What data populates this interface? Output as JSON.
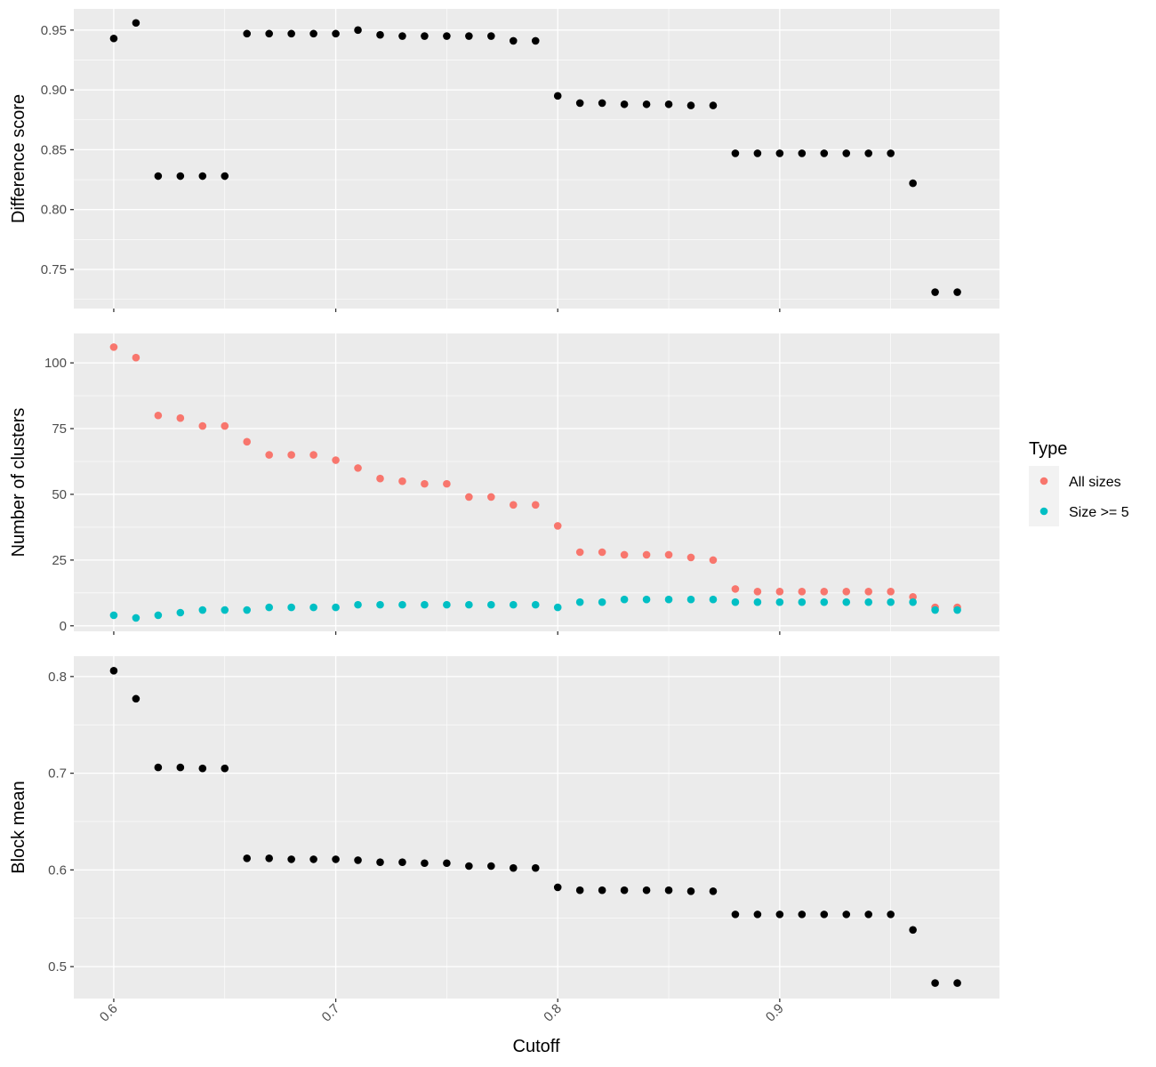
{
  "chart_data": {
    "type": "scatter",
    "xlabel": "Cutoff",
    "xlim": [
      0.582,
      0.999
    ],
    "xticks": [
      0.6,
      0.7,
      0.8,
      0.9
    ],
    "xtick_labels": [
      "0.6",
      "0.7",
      "0.8",
      "0.9"
    ],
    "x": [
      0.6,
      0.61,
      0.62,
      0.63,
      0.64,
      0.65,
      0.66,
      0.67,
      0.68,
      0.69,
      0.7,
      0.71,
      0.72,
      0.73,
      0.74,
      0.75,
      0.76,
      0.77,
      0.78,
      0.79,
      0.8,
      0.81,
      0.82,
      0.83,
      0.84,
      0.85,
      0.86,
      0.87,
      0.88,
      0.89,
      0.9,
      0.91,
      0.92,
      0.93,
      0.94,
      0.95,
      0.96,
      0.97,
      0.98
    ],
    "panels": [
      {
        "ylabel": "Difference score",
        "ylim": [
          0.7173,
          0.9677
        ],
        "yticks": [
          0.75,
          0.8,
          0.85,
          0.9,
          0.95
        ],
        "ytick_labels": [
          "0.75",
          "0.80",
          "0.85",
          "0.90",
          "0.95"
        ],
        "series": [
          {
            "color": "#000000",
            "values": [
              0.943,
              0.956,
              0.828,
              0.828,
              0.828,
              0.828,
              0.947,
              0.947,
              0.947,
              0.947,
              0.947,
              0.95,
              0.946,
              0.945,
              0.945,
              0.945,
              0.945,
              0.945,
              0.941,
              0.941,
              0.895,
              0.889,
              0.889,
              0.888,
              0.888,
              0.888,
              0.887,
              0.887,
              0.847,
              0.847,
              0.847,
              0.847,
              0.847,
              0.847,
              0.847,
              0.847,
              0.822,
              0.731,
              0.731
            ]
          }
        ]
      },
      {
        "ylabel": "Number of clusters",
        "ylim": [
          -2.1,
          111.2
        ],
        "yticks": [
          0,
          25,
          50,
          75,
          100
        ],
        "ytick_labels": [
          "0",
          "25",
          "50",
          "75",
          "100"
        ],
        "series": [
          {
            "name": "All sizes",
            "color": "#f8766d",
            "values": [
              106,
              102,
              80,
              79,
              76,
              76,
              70,
              65,
              65,
              65,
              63,
              60,
              56,
              55,
              54,
              54,
              49,
              49,
              46,
              46,
              38,
              28,
              28,
              27,
              27,
              27,
              26,
              25,
              14,
              13,
              13,
              13,
              13,
              13,
              13,
              13,
              11,
              7,
              7
            ]
          },
          {
            "name": "Size >= 5",
            "color": "#00bfc4",
            "values": [
              4,
              3,
              4,
              5,
              6,
              6,
              6,
              7,
              7,
              7,
              7,
              8,
              8,
              8,
              8,
              8,
              8,
              8,
              8,
              8,
              7,
              9,
              9,
              10,
              10,
              10,
              10,
              10,
              9,
              9,
              9,
              9,
              9,
              9,
              9,
              9,
              9,
              6,
              6
            ]
          }
        ]
      },
      {
        "ylabel": "Block mean",
        "ylim": [
          0.467,
          0.821
        ],
        "yticks": [
          0.5,
          0.6,
          0.7,
          0.8
        ],
        "ytick_labels": [
          "0.5",
          "0.6",
          "0.7",
          "0.8"
        ],
        "series": [
          {
            "color": "#000000",
            "values": [
              0.806,
              0.777,
              0.706,
              0.706,
              0.705,
              0.705,
              0.612,
              0.612,
              0.611,
              0.611,
              0.611,
              0.61,
              0.608,
              0.608,
              0.607,
              0.607,
              0.604,
              0.604,
              0.602,
              0.602,
              0.582,
              0.579,
              0.579,
              0.579,
              0.579,
              0.579,
              0.578,
              0.578,
              0.554,
              0.554,
              0.554,
              0.554,
              0.554,
              0.554,
              0.554,
              0.554,
              0.538,
              0.483,
              0.483
            ]
          }
        ]
      }
    ],
    "legend": {
      "title": "Type",
      "position": "right",
      "entries": [
        {
          "label": "All sizes",
          "color": "#f8766d"
        },
        {
          "label": "Size >= 5",
          "color": "#00bfc4"
        }
      ]
    },
    "grid": true
  }
}
